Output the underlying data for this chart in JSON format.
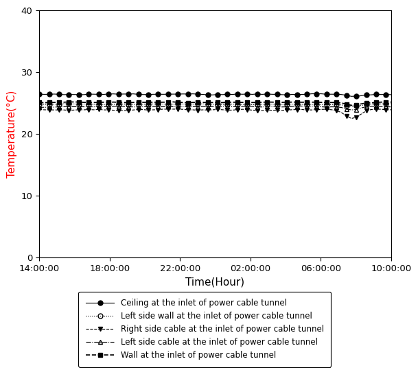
{
  "title": "",
  "xlabel": "Time(Hour)",
  "ylabel": "Temperature(°C)",
  "ylabel_color": "red",
  "xlabel_color": "black",
  "xlim_labels": [
    "14:00:00",
    "18:00:00",
    "22:00:00",
    "02:00:00",
    "06:00:00",
    "10:00:00"
  ],
  "ylim": [
    0,
    40
  ],
  "yticks": [
    0,
    10,
    20,
    30,
    40
  ],
  "n_points": 72,
  "series": [
    {
      "label": "Ceiling at the inlet of power cable tunnel",
      "base": 26.4,
      "variation": 0.15,
      "dip_amount": 0.3,
      "linestyle": "-",
      "marker": "o",
      "markersize": 5,
      "color": "black",
      "fillstyle": "full",
      "linewidth": 0.8,
      "markevery": 2
    },
    {
      "label": "Left side wall at the inlet of power cable tunnel",
      "base": 24.8,
      "variation": 0.12,
      "dip_amount": 0.4,
      "linestyle": ":",
      "marker": "o",
      "markersize": 5,
      "color": "black",
      "fillstyle": "none",
      "linewidth": 0.8,
      "markevery": 2
    },
    {
      "label": "Right side cable at the inlet of power cable tunnel",
      "base": 23.9,
      "variation": 0.2,
      "dip_amount": 1.5,
      "linestyle": "--",
      "marker": "v",
      "markersize": 5,
      "color": "black",
      "fillstyle": "full",
      "linewidth": 0.8,
      "markevery": 2
    },
    {
      "label": "Left side cable at the inlet of power cable tunnel",
      "base": 24.4,
      "variation": 0.12,
      "dip_amount": 0.5,
      "linestyle": "-.",
      "marker": "^",
      "markersize": 5,
      "color": "black",
      "fillstyle": "none",
      "linewidth": 0.8,
      "markevery": 2
    },
    {
      "label": "Wall at the inlet of power cable tunnel",
      "base": 25.1,
      "variation": 0.1,
      "dip_amount": 0.5,
      "linestyle": "--",
      "marker": "s",
      "markersize": 4,
      "color": "black",
      "fillstyle": "full",
      "linewidth": 1.2,
      "markevery": 2
    }
  ],
  "background_color": "white",
  "legend_fontsize": 8.5,
  "axis_fontsize": 11,
  "tick_fontsize": 9.5
}
